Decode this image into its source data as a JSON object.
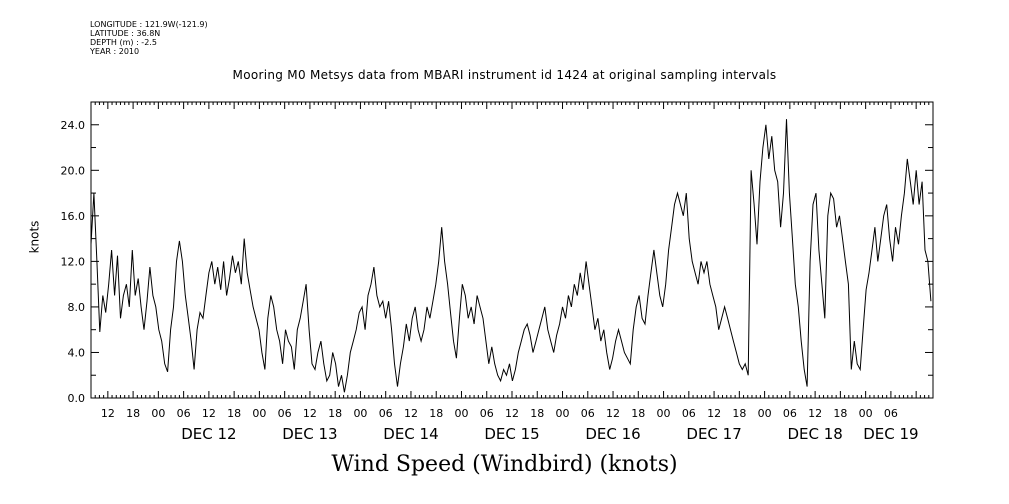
{
  "meta": {
    "longitude": "LONGITUDE : 121.9W(-121.9)",
    "latitude": "LATITUDE : 36.8N",
    "depth": "DEPTH (m) : -2.5",
    "year": "YEAR : 2010"
  },
  "chart_data": {
    "type": "line",
    "title": "Mooring M0 Metsys data from MBARI instrument id 1424 at original sampling intervals",
    "xlabel": "Wind Speed (Windbird) (knots)",
    "ylabel": "knots",
    "ylim": [
      0,
      26
    ],
    "xlim_hours_label": "Dec 11 08:00 to Dec 19 16:00",
    "yticks": [
      "0.0",
      "4.0",
      "8.0",
      "12.0",
      "16.0",
      "20.0",
      "24.0"
    ],
    "hour_ticks": [
      "12",
      "18",
      "00",
      "06",
      "12",
      "18",
      "00",
      "06",
      "12",
      "18",
      "00",
      "06",
      "12",
      "18",
      "00",
      "06",
      "12",
      "18",
      "00",
      "06",
      "12",
      "18",
      "00",
      "06",
      "12",
      "18",
      "00",
      "06",
      "12",
      "18",
      "00",
      "06"
    ],
    "day_labels": [
      "DEC 12",
      "DEC 13",
      "DEC 14",
      "DEC 15",
      "DEC 16",
      "DEC 17",
      "DEC 18",
      "DEC 19"
    ],
    "grid": false,
    "series": [
      {
        "color": "#000000",
        "values": [
          [
            0,
            13.5
          ],
          [
            1,
            18
          ],
          [
            2,
            12
          ],
          [
            3,
            5.8
          ],
          [
            4,
            9
          ],
          [
            5,
            7.5
          ],
          [
            6,
            10
          ],
          [
            7,
            13
          ],
          [
            8,
            9
          ],
          [
            9,
            12.5
          ],
          [
            10,
            7
          ],
          [
            11,
            9
          ],
          [
            12,
            10
          ],
          [
            13,
            8
          ],
          [
            14,
            13
          ],
          [
            15,
            9
          ],
          [
            16,
            10.5
          ],
          [
            17,
            8
          ],
          [
            18,
            6
          ],
          [
            19,
            8.5
          ],
          [
            20,
            11.5
          ],
          [
            21,
            9
          ],
          [
            22,
            8
          ],
          [
            23,
            6
          ],
          [
            24,
            5
          ],
          [
            25,
            3
          ],
          [
            26,
            2.3
          ],
          [
            27,
            6
          ],
          [
            28,
            8
          ],
          [
            29,
            12
          ],
          [
            30,
            13.8
          ],
          [
            31,
            12
          ],
          [
            32,
            9
          ],
          [
            33,
            7
          ],
          [
            34,
            5
          ],
          [
            35,
            2.5
          ],
          [
            36,
            6
          ],
          [
            37,
            7.5
          ],
          [
            38,
            7
          ],
          [
            39,
            9
          ],
          [
            40,
            11
          ],
          [
            41,
            12
          ],
          [
            42,
            10
          ],
          [
            43,
            11.5
          ],
          [
            44,
            9.5
          ],
          [
            45,
            12
          ],
          [
            46,
            9
          ],
          [
            47,
            10.5
          ],
          [
            48,
            12.5
          ],
          [
            49,
            11
          ],
          [
            50,
            12
          ],
          [
            51,
            10
          ],
          [
            52,
            14
          ],
          [
            53,
            11
          ],
          [
            54,
            9.5
          ],
          [
            55,
            8
          ],
          [
            56,
            7
          ],
          [
            57,
            6
          ],
          [
            58,
            4
          ],
          [
            59,
            2.5
          ],
          [
            60,
            7
          ],
          [
            61,
            9
          ],
          [
            62,
            8
          ],
          [
            63,
            6
          ],
          [
            64,
            5
          ],
          [
            65,
            3
          ],
          [
            66,
            6
          ],
          [
            67,
            5
          ],
          [
            68,
            4.5
          ],
          [
            69,
            2.5
          ],
          [
            70,
            6
          ],
          [
            71,
            7
          ],
          [
            72,
            8.5
          ],
          [
            73,
            10
          ],
          [
            74,
            6
          ],
          [
            75,
            3
          ],
          [
            76,
            2.5
          ],
          [
            77,
            4
          ],
          [
            78,
            5
          ],
          [
            79,
            3
          ],
          [
            80,
            1.5
          ],
          [
            81,
            2
          ],
          [
            82,
            4
          ],
          [
            83,
            3
          ],
          [
            84,
            1
          ],
          [
            85,
            2
          ],
          [
            86,
            0.5
          ],
          [
            87,
            2
          ],
          [
            88,
            4
          ],
          [
            89,
            5
          ],
          [
            90,
            6
          ],
          [
            91,
            7.5
          ],
          [
            92,
            8
          ],
          [
            93,
            6
          ],
          [
            94,
            9
          ],
          [
            95,
            10
          ],
          [
            96,
            11.5
          ],
          [
            97,
            9
          ],
          [
            98,
            8
          ],
          [
            99,
            8.5
          ],
          [
            100,
            7
          ],
          [
            101,
            8.5
          ],
          [
            102,
            6
          ],
          [
            103,
            3
          ],
          [
            104,
            1
          ],
          [
            105,
            3
          ],
          [
            106,
            4.5
          ],
          [
            107,
            6.5
          ],
          [
            108,
            5
          ],
          [
            109,
            7
          ],
          [
            110,
            8
          ],
          [
            111,
            6
          ],
          [
            112,
            5
          ],
          [
            113,
            6
          ],
          [
            114,
            8
          ],
          [
            115,
            7
          ],
          [
            116,
            8.5
          ],
          [
            117,
            10
          ],
          [
            118,
            12
          ],
          [
            119,
            15
          ],
          [
            120,
            12
          ],
          [
            121,
            10
          ],
          [
            122,
            7.5
          ],
          [
            123,
            5
          ],
          [
            124,
            3.5
          ],
          [
            125,
            7
          ],
          [
            126,
            10
          ],
          [
            127,
            9
          ],
          [
            128,
            7
          ],
          [
            129,
            8
          ],
          [
            130,
            6.5
          ],
          [
            131,
            9
          ],
          [
            132,
            8
          ],
          [
            133,
            7
          ],
          [
            134,
            5
          ],
          [
            135,
            3
          ],
          [
            136,
            4.5
          ],
          [
            137,
            3
          ],
          [
            138,
            2
          ],
          [
            139,
            1.5
          ],
          [
            140,
            2.5
          ],
          [
            141,
            2
          ],
          [
            142,
            3
          ],
          [
            143,
            1.5
          ],
          [
            144,
            2.5
          ],
          [
            145,
            4
          ],
          [
            146,
            5
          ],
          [
            147,
            6
          ],
          [
            148,
            6.5
          ],
          [
            149,
            5.5
          ],
          [
            150,
            4
          ],
          [
            151,
            5
          ],
          [
            152,
            6
          ],
          [
            153,
            7
          ],
          [
            154,
            8
          ],
          [
            155,
            6
          ],
          [
            156,
            5
          ],
          [
            157,
            4
          ],
          [
            158,
            5.5
          ],
          [
            159,
            6.5
          ],
          [
            160,
            8
          ],
          [
            161,
            7
          ],
          [
            162,
            9
          ],
          [
            163,
            8
          ],
          [
            164,
            10
          ],
          [
            165,
            9
          ],
          [
            166,
            11
          ],
          [
            167,
            9.5
          ],
          [
            168,
            12
          ],
          [
            169,
            10
          ],
          [
            170,
            8
          ],
          [
            171,
            6
          ],
          [
            172,
            7
          ],
          [
            173,
            5
          ],
          [
            174,
            6
          ],
          [
            175,
            4
          ],
          [
            176,
            2.5
          ],
          [
            177,
            3.5
          ],
          [
            178,
            5
          ],
          [
            179,
            6
          ],
          [
            180,
            5
          ],
          [
            181,
            4
          ],
          [
            182,
            3.5
          ],
          [
            183,
            3
          ],
          [
            184,
            6
          ],
          [
            185,
            8
          ],
          [
            186,
            9
          ],
          [
            187,
            7
          ],
          [
            188,
            6.5
          ],
          [
            189,
            9
          ],
          [
            190,
            11
          ],
          [
            191,
            13
          ],
          [
            192,
            11
          ],
          [
            193,
            9
          ],
          [
            194,
            8
          ],
          [
            195,
            10
          ],
          [
            196,
            13
          ],
          [
            197,
            15
          ],
          [
            198,
            17
          ],
          [
            199,
            18
          ],
          [
            200,
            17
          ],
          [
            201,
            16
          ],
          [
            202,
            18
          ],
          [
            203,
            14
          ],
          [
            204,
            12
          ],
          [
            205,
            11
          ],
          [
            206,
            10
          ],
          [
            207,
            12
          ],
          [
            208,
            11
          ],
          [
            209,
            12
          ],
          [
            210,
            10
          ],
          [
            211,
            9
          ],
          [
            212,
            8
          ],
          [
            213,
            6
          ],
          [
            214,
            7
          ],
          [
            215,
            8
          ],
          [
            216,
            7
          ],
          [
            217,
            6
          ],
          [
            218,
            5
          ],
          [
            219,
            4
          ],
          [
            220,
            3
          ],
          [
            221,
            2.5
          ],
          [
            222,
            3
          ],
          [
            223,
            2
          ],
          [
            224,
            20
          ],
          [
            225,
            17
          ],
          [
            226,
            13.5
          ],
          [
            227,
            19
          ],
          [
            228,
            22
          ],
          [
            229,
            24
          ],
          [
            230,
            21
          ],
          [
            231,
            23
          ],
          [
            232,
            20
          ],
          [
            233,
            19
          ],
          [
            234,
            15
          ],
          [
            235,
            18
          ],
          [
            236,
            24.5
          ],
          [
            237,
            18
          ],
          [
            238,
            14
          ],
          [
            239,
            10
          ],
          [
            240,
            8
          ],
          [
            241,
            5
          ],
          [
            242,
            2.5
          ],
          [
            243,
            1
          ],
          [
            244,
            12
          ],
          [
            245,
            17
          ],
          [
            246,
            18
          ],
          [
            247,
            13
          ],
          [
            248,
            10
          ],
          [
            249,
            7
          ],
          [
            250,
            16
          ],
          [
            251,
            18
          ],
          [
            252,
            17.5
          ],
          [
            253,
            15
          ],
          [
            254,
            16
          ],
          [
            255,
            14
          ],
          [
            256,
            12
          ],
          [
            257,
            10
          ],
          [
            258,
            2.5
          ],
          [
            259,
            5
          ],
          [
            260,
            3
          ],
          [
            261,
            2.5
          ],
          [
            262,
            6
          ],
          [
            263,
            9.5
          ],
          [
            264,
            11
          ],
          [
            265,
            13
          ],
          [
            266,
            15
          ],
          [
            267,
            12
          ],
          [
            268,
            14
          ],
          [
            269,
            16
          ],
          [
            270,
            17
          ],
          [
            271,
            14
          ],
          [
            272,
            12
          ],
          [
            273,
            15
          ],
          [
            274,
            13.5
          ],
          [
            275,
            16
          ],
          [
            276,
            18
          ],
          [
            277,
            21
          ],
          [
            278,
            19
          ],
          [
            279,
            17
          ],
          [
            280,
            20
          ],
          [
            281,
            17
          ],
          [
            282,
            19
          ],
          [
            283,
            13
          ],
          [
            284,
            12
          ],
          [
            285,
            8.5
          ]
        ]
      }
    ]
  }
}
